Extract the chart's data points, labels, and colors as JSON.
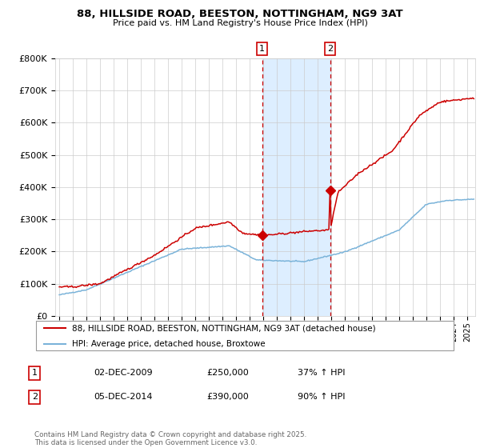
{
  "title": "88, HILLSIDE ROAD, BEESTON, NOTTINGHAM, NG9 3AT",
  "subtitle": "Price paid vs. HM Land Registry's House Price Index (HPI)",
  "legend_line1": "88, HILLSIDE ROAD, BEESTON, NOTTINGHAM, NG9 3AT (detached house)",
  "legend_line2": "HPI: Average price, detached house, Broxtowe",
  "transaction1_label": "1",
  "transaction1_date": "02-DEC-2009",
  "transaction1_price": 250000,
  "transaction1_pct": "37% ↑ HPI",
  "transaction2_label": "2",
  "transaction2_date": "05-DEC-2014",
  "transaction2_price": 390000,
  "transaction2_pct": "90% ↑ HPI",
  "footer": "Contains HM Land Registry data © Crown copyright and database right 2025.\nThis data is licensed under the Open Government Licence v3.0.",
  "hpi_color": "#7ab3d9",
  "price_color": "#cc0000",
  "marker_color": "#cc0000",
  "dashed_color": "#cc0000",
  "shade_color": "#ddeeff",
  "background_color": "#ffffff",
  "grid_color": "#cccccc",
  "ylim": [
    0,
    800000
  ],
  "yticks": [
    0,
    100000,
    200000,
    300000,
    400000,
    500000,
    600000,
    700000,
    800000
  ],
  "ytick_labels": [
    "£0",
    "£100K",
    "£200K",
    "£300K",
    "£400K",
    "£500K",
    "£600K",
    "£700K",
    "£800K"
  ],
  "xlim_start": 1994.7,
  "xlim_end": 2025.6,
  "transaction1_x": 2009.92,
  "transaction2_x": 2014.92
}
